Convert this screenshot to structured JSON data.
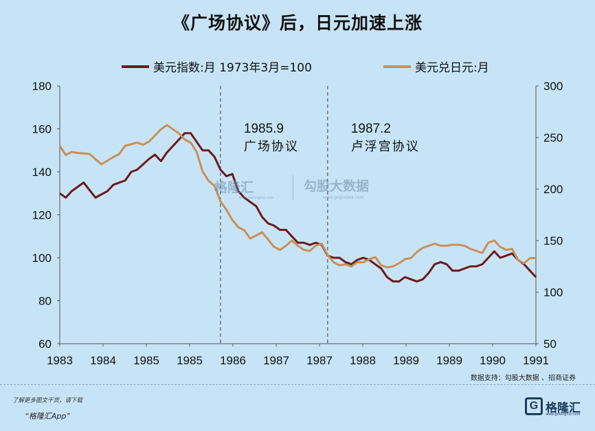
{
  "header": {
    "title": "《广场协议》后，日元加速上涨"
  },
  "chart_data": {
    "type": "line",
    "title": "《广场协议》后，日元加速上涨",
    "x_tick_labels": [
      "1983",
      "1984",
      "1985",
      "1985",
      "1986",
      "1987",
      "1987",
      "1988",
      "1989",
      "1989",
      "1990",
      "1991"
    ],
    "x_range": [
      1983.0,
      1991.0
    ],
    "left_axis": {
      "ticks": [
        60,
        80,
        100,
        120,
        140,
        160,
        180
      ],
      "ylim": [
        60,
        180
      ]
    },
    "right_axis": {
      "ticks": [
        50,
        100,
        150,
        200,
        250,
        300
      ],
      "ylim": [
        50,
        300
      ]
    },
    "grid": false,
    "legend_position": "top",
    "series": [
      {
        "name": "美元指数:月 1973年3月=100",
        "axis": "left",
        "color": "#6b1a1a",
        "x": [
          1983.0,
          1983.1,
          1983.2,
          1983.3,
          1983.4,
          1983.6,
          1983.8,
          1983.9,
          1984.1,
          1984.2,
          1984.3,
          1984.5,
          1984.6,
          1984.7,
          1984.8,
          1984.9,
          1985.1,
          1985.2,
          1985.4,
          1985.5,
          1985.6,
          1985.7,
          1985.8,
          1985.9,
          1986.0,
          1986.1,
          1986.2,
          1986.3,
          1986.4,
          1986.5,
          1986.6,
          1986.7,
          1986.8,
          1986.9,
          1987.0,
          1987.1,
          1987.2,
          1987.3,
          1987.4,
          1987.5,
          1987.6,
          1987.7,
          1987.8,
          1987.9,
          1988.0,
          1988.1,
          1988.2,
          1988.3,
          1988.4,
          1988.5,
          1988.6,
          1988.7,
          1988.8,
          1988.9,
          1989.0,
          1989.1,
          1989.2,
          1989.3,
          1989.4,
          1989.5,
          1989.6,
          1989.7,
          1989.8,
          1989.9,
          1990.0,
          1990.1,
          1990.2,
          1990.3,
          1990.4,
          1990.5,
          1990.6,
          1990.7,
          1990.8,
          1990.9,
          1991.0
        ],
        "values": [
          130,
          128,
          131,
          133,
          135,
          128,
          131,
          134,
          136,
          140,
          141,
          146,
          148,
          145,
          149,
          152,
          158,
          158,
          150,
          150,
          147,
          141,
          138,
          139,
          131,
          128,
          126,
          124,
          119,
          116,
          115,
          113,
          113,
          110,
          107,
          107,
          106,
          107,
          106,
          101,
          100,
          100,
          98,
          97,
          99,
          100,
          99,
          97,
          95,
          91,
          89,
          89,
          91,
          90,
          89,
          90,
          93,
          97,
          98,
          97,
          94,
          94,
          95,
          96,
          96,
          97,
          100,
          103,
          100,
          101,
          102,
          99,
          97,
          94,
          91
        ]
      },
      {
        "name": "美元兑日元:月",
        "axis": "right",
        "color": "#c98f57",
        "x": [
          1983.0,
          1983.1,
          1983.2,
          1983.3,
          1983.5,
          1983.7,
          1983.9,
          1984.0,
          1984.1,
          1984.3,
          1984.4,
          1984.5,
          1984.7,
          1984.8,
          1985.0,
          1985.1,
          1985.2,
          1985.3,
          1985.4,
          1985.5,
          1985.6,
          1985.7,
          1985.8,
          1985.9,
          1986.0,
          1986.1,
          1986.2,
          1986.3,
          1986.4,
          1986.5,
          1986.6,
          1986.7,
          1986.8,
          1986.9,
          1987.0,
          1987.1,
          1987.2,
          1987.3,
          1987.4,
          1987.5,
          1987.6,
          1987.7,
          1987.8,
          1987.9,
          1988.0,
          1988.1,
          1988.2,
          1988.3,
          1988.4,
          1988.5,
          1988.6,
          1988.7,
          1988.8,
          1988.9,
          1989.0,
          1989.1,
          1989.2,
          1989.3,
          1989.4,
          1989.5,
          1989.6,
          1989.7,
          1989.8,
          1989.9,
          1990.0,
          1990.1,
          1990.2,
          1990.3,
          1990.4,
          1990.5,
          1990.6,
          1990.7,
          1990.8,
          1990.9,
          1991.0
        ],
        "values": [
          242,
          233,
          236,
          235,
          234,
          224,
          231,
          234,
          242,
          245,
          243,
          246,
          258,
          262,
          254,
          248,
          245,
          236,
          217,
          208,
          203,
          188,
          180,
          170,
          163,
          160,
          152,
          155,
          158,
          151,
          144,
          141,
          145,
          150,
          145,
          141,
          140,
          145,
          147,
          136,
          129,
          126,
          127,
          125,
          129,
          129,
          132,
          134,
          126,
          124,
          125,
          128,
          132,
          133,
          139,
          143,
          145,
          147,
          145,
          145,
          146,
          146,
          145,
          142,
          140,
          138,
          148,
          150,
          144,
          141,
          142,
          131,
          128,
          133,
          133
        ]
      }
    ],
    "annotations": [
      {
        "x": 1985.7,
        "year": "1985.9",
        "label": "广场协议"
      },
      {
        "x": 1987.5,
        "year": "1987.2",
        "label": "卢浮宫协议"
      }
    ]
  },
  "watermark": {
    "brand": "格隆汇",
    "url1": "www.gelonghui.com",
    "brand2": "勾股大数据",
    "url2": "www.gogudata.com"
  },
  "footer": {
    "source": "数据支持：勾股大数据 、招商证券",
    "download_line1": "了解更多图文干货，请下载",
    "download_line2": "“格隆汇App”",
    "logo_text": "格隆汇",
    "logo_url": "www.gelonghui.com"
  },
  "colors": {
    "background": "#c7e4f6",
    "dollar_index": "#6b1a1a",
    "usdjpy": "#c98f57"
  }
}
